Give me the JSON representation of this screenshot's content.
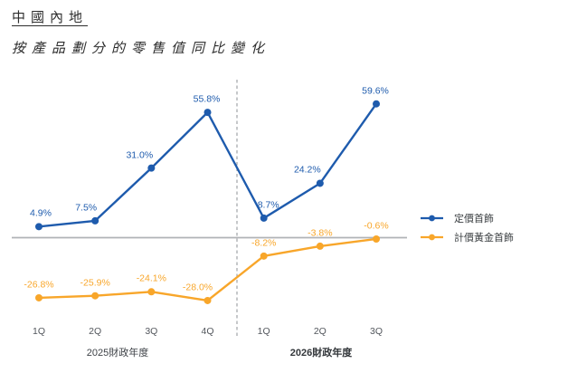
{
  "page": {
    "title": "中國內地",
    "subtitle": "按產品劃分的零售值同比變化"
  },
  "chart_data": {
    "type": "line",
    "title": "按產品劃分的零售值同比變化",
    "categories": [
      "1Q",
      "2Q",
      "3Q",
      "4Q",
      "1Q",
      "2Q",
      "3Q"
    ],
    "x_groups": [
      {
        "label": "2025財政年度",
        "span": [
          0,
          3
        ]
      },
      {
        "label": "2026財政年度",
        "span": [
          4,
          6
        ]
      }
    ],
    "series": [
      {
        "name": "定價首飾",
        "color": "#1e5bad",
        "values": [
          4.9,
          7.5,
          31.0,
          55.8,
          8.7,
          24.2,
          59.6
        ],
        "labels": [
          "4.9%",
          "7.5%",
          "31.0%",
          "55.8%",
          "8.7%",
          "24.2%",
          "59.6%"
        ]
      },
      {
        "name": "計價黃金首飾",
        "color": "#f8a62a",
        "values": [
          -26.8,
          -25.9,
          -24.1,
          -28.0,
          -8.2,
          -3.8,
          -0.6
        ],
        "labels": [
          "-26.8%",
          "-25.9%",
          "-24.1%",
          "-28.0%",
          "-8.2%",
          "-3.8%",
          "-0.6%"
        ]
      }
    ],
    "unit": "%",
    "ylim": [
      -35,
      70
    ],
    "baseline_value": 0,
    "separator_after_index": 3,
    "grid": false,
    "legend_position": "right"
  }
}
